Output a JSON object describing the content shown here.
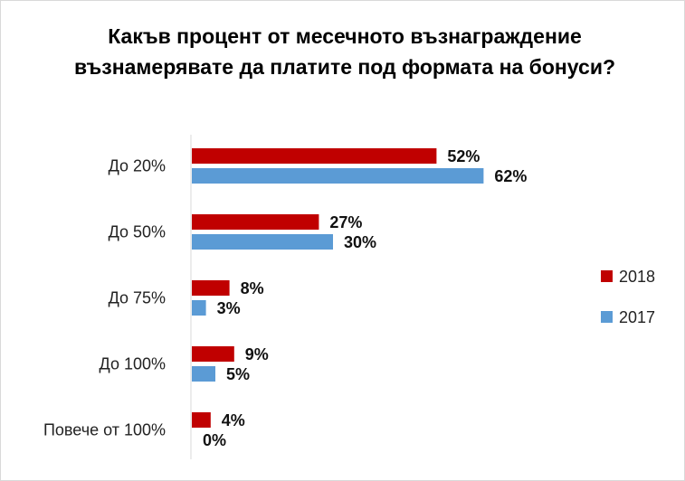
{
  "chart_data": {
    "type": "bar",
    "orientation": "horizontal",
    "title": "Какъв процент от месечното възнаграждение възнамерявате да платите под формата на бонуси?",
    "categories": [
      "До 20%",
      "До 50%",
      "До 75%",
      "До 100%",
      "Повече от 100%"
    ],
    "series": [
      {
        "name": "2018",
        "values": [
          52,
          27,
          8,
          9,
          4
        ],
        "labels": [
          "52%",
          "27%",
          "8%",
          "9%",
          "4%"
        ],
        "color": "#c00000"
      },
      {
        "name": "2017",
        "values": [
          62,
          30,
          3,
          5,
          0
        ],
        "labels": [
          "62%",
          "30%",
          "3%",
          "5%",
          "0%"
        ],
        "color": "#5b9bd5"
      }
    ],
    "xlim": [
      0,
      100
    ],
    "unit": "%",
    "grid": false,
    "legend_position": "right"
  }
}
